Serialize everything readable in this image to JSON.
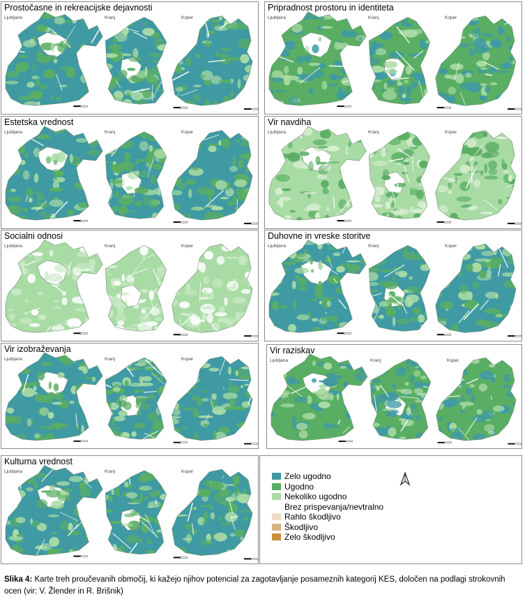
{
  "colors": {
    "zelo_ugodno": "#3f9aa4",
    "ugodno": "#5aae63",
    "nekoliko_ugodno": "#a9dba5",
    "brez": "#ffffff",
    "rahlo": "#f1dcc4",
    "skodljivo": "#d8b384",
    "zelo_skodljivo": "#c9913a"
  },
  "city_labels": [
    "Ljubljana",
    "Kranj",
    "Koper"
  ],
  "panels": [
    {
      "title": "Prostočasne in rekreacijske dejavnosti",
      "base": "#3f9aa4",
      "accent": "#5aae63",
      "light": "#a9dba5"
    },
    {
      "title": "Pripradnost prostoru in identiteta",
      "base": "#5aae63",
      "accent": "#3f9aa4",
      "light": "#a9dba5"
    },
    {
      "title": "Estetska vrednost",
      "base": "#3f9aa4",
      "accent": "#5aae63",
      "light": "#a9dba5"
    },
    {
      "title": "Vir navdiha",
      "base": "#a9dba5",
      "accent": "#5aae63",
      "light": "#d8efd4"
    },
    {
      "title": "Socialni odnosi",
      "base": "#a9dba5",
      "accent": "#c8e8c4",
      "light": "#ffffff"
    },
    {
      "title": "Duhovne in vreske storitve",
      "base": "#3f9aa4",
      "accent": "#5aae63",
      "light": "#a9dba5"
    },
    {
      "title": "Vir izobraževanja",
      "base": "#3f9aa4",
      "accent": "#5aae63",
      "light": "#a9dba5"
    },
    {
      "title": "Vir raziskav",
      "base": "#5aae63",
      "accent": "#3f9aa4",
      "light": "#a9dba5"
    },
    {
      "title": "Kulturna vrednost",
      "base": "#3f9aa4",
      "accent": "#5aae63",
      "light": "#a9dba5"
    }
  ],
  "legend": [
    {
      "label": "Zelo ugodno",
      "color": "#3f9aa4"
    },
    {
      "label": "Ugodno",
      "color": "#5aae63"
    },
    {
      "label": "Nekoliko ugodno",
      "color": "#a9dba5"
    },
    {
      "label": "Brez prispevanja/nevtralno",
      "color": "#ffffff"
    },
    {
      "label": "Rahlo škodljivo",
      "color": "#f1dcc4"
    },
    {
      "label": "Škodljivo",
      "color": "#d8b384"
    },
    {
      "label": "Zelo škodljivo",
      "color": "#c9913a"
    }
  ],
  "caption": {
    "label": "Slika 4:",
    "text": " Karte treh proučevanih območij, ki kažejo njihov potencial za zagotavljanje posameznih kategorij KES, določen na podlagi strokovnih ocen (vir: V. Žlender in R. Brišnik)"
  }
}
